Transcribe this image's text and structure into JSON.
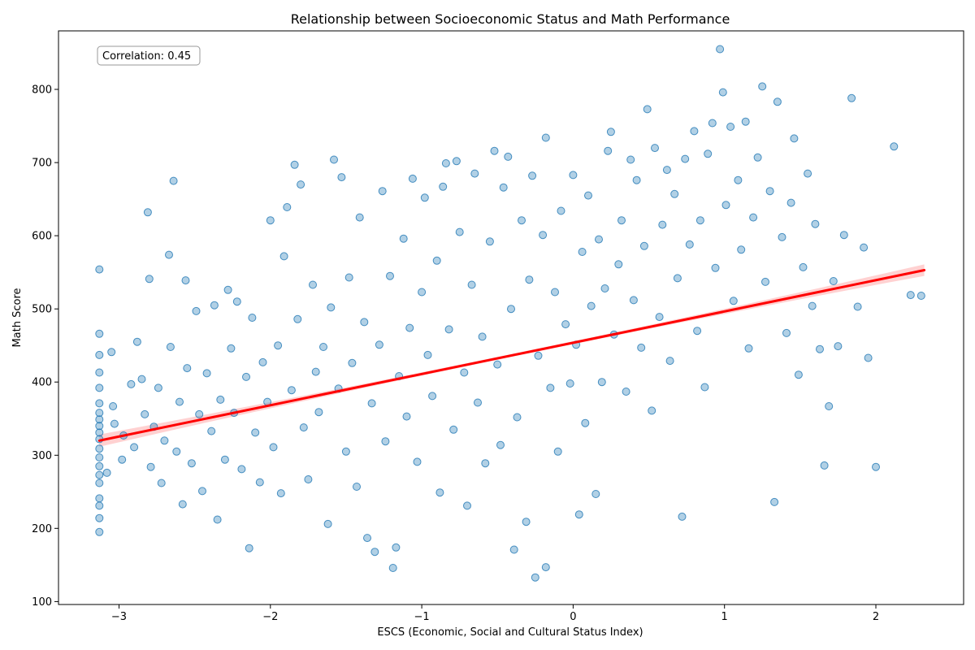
{
  "chart_data": {
    "type": "scatter",
    "title": "Relationship between Socioeconomic Status and Math Performance",
    "xlabel": "ESCS (Economic, Social and Cultural Status Index)",
    "ylabel": "Math Score",
    "xlim": [
      -3.4,
      2.58
    ],
    "ylim": [
      96,
      880
    ],
    "xticks": [
      -3,
      -2,
      -1,
      0,
      1,
      2
    ],
    "xtick_labels": [
      "−3",
      "−2",
      "−1",
      "0",
      "1",
      "2"
    ],
    "yticks": [
      100,
      200,
      300,
      400,
      500,
      600,
      700,
      800
    ],
    "ytick_labels": [
      "100",
      "200",
      "300",
      "400",
      "500",
      "600",
      "700",
      "800"
    ],
    "grid": false,
    "annotation": "Correlation: 0.45",
    "colors": {
      "points": "#1f77b4",
      "regression": "#ff0000",
      "confidence_band": "#ff9999"
    },
    "series": [
      {
        "type": "scatter",
        "alpha": 0.35,
        "points": [
          [
            -3.13,
            554
          ],
          [
            -3.13,
            466
          ],
          [
            -3.13,
            437
          ],
          [
            -3.13,
            413
          ],
          [
            -3.13,
            392
          ],
          [
            -3.13,
            371
          ],
          [
            -3.13,
            358
          ],
          [
            -3.13,
            349
          ],
          [
            -3.13,
            340
          ],
          [
            -3.13,
            331
          ],
          [
            -3.13,
            322
          ],
          [
            -3.13,
            309
          ],
          [
            -3.13,
            297
          ],
          [
            -3.13,
            285
          ],
          [
            -3.13,
            273
          ],
          [
            -3.13,
            262
          ],
          [
            -3.13,
            241
          ],
          [
            -3.13,
            231
          ],
          [
            -3.13,
            214
          ],
          [
            -3.13,
            195
          ],
          [
            -3.08,
            276
          ],
          [
            -3.05,
            441
          ],
          [
            -3.04,
            367
          ],
          [
            -3.03,
            343
          ],
          [
            -2.98,
            294
          ],
          [
            -2.97,
            327
          ],
          [
            -2.92,
            397
          ],
          [
            -2.9,
            311
          ],
          [
            -2.88,
            455
          ],
          [
            -2.85,
            404
          ],
          [
            -2.83,
            356
          ],
          [
            -2.81,
            632
          ],
          [
            -2.8,
            541
          ],
          [
            -2.79,
            284
          ],
          [
            -2.77,
            339
          ],
          [
            -2.74,
            392
          ],
          [
            -2.72,
            262
          ],
          [
            -2.7,
            320
          ],
          [
            -2.67,
            574
          ],
          [
            -2.66,
            448
          ],
          [
            -2.64,
            675
          ],
          [
            -2.62,
            305
          ],
          [
            -2.6,
            373
          ],
          [
            -2.58,
            233
          ],
          [
            -2.56,
            539
          ],
          [
            -2.55,
            419
          ],
          [
            -2.52,
            289
          ],
          [
            -2.49,
            497
          ],
          [
            -2.47,
            356
          ],
          [
            -2.45,
            251
          ],
          [
            -2.42,
            412
          ],
          [
            -2.39,
            333
          ],
          [
            -2.37,
            505
          ],
          [
            -2.35,
            212
          ],
          [
            -2.33,
            376
          ],
          [
            -2.3,
            294
          ],
          [
            -2.28,
            526
          ],
          [
            -2.26,
            446
          ],
          [
            -2.24,
            358
          ],
          [
            -2.22,
            510
          ],
          [
            -2.19,
            281
          ],
          [
            -2.16,
            407
          ],
          [
            -2.14,
            173
          ],
          [
            -2.12,
            488
          ],
          [
            -2.1,
            331
          ],
          [
            -2.07,
            263
          ],
          [
            -2.05,
            427
          ],
          [
            -2.02,
            373
          ],
          [
            -2.0,
            621
          ],
          [
            -1.98,
            311
          ],
          [
            -1.95,
            450
          ],
          [
            -1.93,
            248
          ],
          [
            -1.91,
            572
          ],
          [
            -1.89,
            639
          ],
          [
            -1.86,
            389
          ],
          [
            -1.84,
            697
          ],
          [
            -1.82,
            486
          ],
          [
            -1.8,
            670
          ],
          [
            -1.78,
            338
          ],
          [
            -1.75,
            267
          ],
          [
            -1.72,
            533
          ],
          [
            -1.7,
            414
          ],
          [
            -1.68,
            359
          ],
          [
            -1.65,
            448
          ],
          [
            -1.62,
            206
          ],
          [
            -1.6,
            502
          ],
          [
            -1.58,
            704
          ],
          [
            -1.55,
            391
          ],
          [
            -1.53,
            680
          ],
          [
            -1.5,
            305
          ],
          [
            -1.48,
            543
          ],
          [
            -1.46,
            426
          ],
          [
            -1.43,
            257
          ],
          [
            -1.41,
            625
          ],
          [
            -1.38,
            482
          ],
          [
            -1.36,
            187
          ],
          [
            -1.33,
            371
          ],
          [
            -1.31,
            168
          ],
          [
            -1.28,
            451
          ],
          [
            -1.26,
            661
          ],
          [
            -1.24,
            319
          ],
          [
            -1.21,
            545
          ],
          [
            -1.19,
            146
          ],
          [
            -1.17,
            174
          ],
          [
            -1.15,
            408
          ],
          [
            -1.12,
            596
          ],
          [
            -1.1,
            353
          ],
          [
            -1.08,
            474
          ],
          [
            -1.06,
            678
          ],
          [
            -1.03,
            291
          ],
          [
            -1.0,
            523
          ],
          [
            -0.98,
            652
          ],
          [
            -0.96,
            437
          ],
          [
            -0.93,
            381
          ],
          [
            -0.9,
            566
          ],
          [
            -0.88,
            249
          ],
          [
            -0.86,
            667
          ],
          [
            -0.84,
            699
          ],
          [
            -0.82,
            472
          ],
          [
            -0.79,
            335
          ],
          [
            -0.77,
            702
          ],
          [
            -0.75,
            605
          ],
          [
            -0.72,
            413
          ],
          [
            -0.7,
            231
          ],
          [
            -0.67,
            533
          ],
          [
            -0.65,
            685
          ],
          [
            -0.63,
            372
          ],
          [
            -0.6,
            462
          ],
          [
            -0.58,
            289
          ],
          [
            -0.55,
            592
          ],
          [
            -0.52,
            716
          ],
          [
            -0.5,
            424
          ],
          [
            -0.48,
            314
          ],
          [
            -0.46,
            666
          ],
          [
            -0.43,
            708
          ],
          [
            -0.41,
            500
          ],
          [
            -0.39,
            171
          ],
          [
            -0.37,
            352
          ],
          [
            -0.34,
            621
          ],
          [
            -0.31,
            209
          ],
          [
            -0.29,
            540
          ],
          [
            -0.27,
            682
          ],
          [
            -0.25,
            133
          ],
          [
            -0.23,
            436
          ],
          [
            -0.2,
            601
          ],
          [
            -0.18,
            734
          ],
          [
            -0.18,
            147
          ],
          [
            -0.15,
            392
          ],
          [
            -0.12,
            523
          ],
          [
            -0.1,
            305
          ],
          [
            -0.08,
            634
          ],
          [
            -0.05,
            479
          ],
          [
            -0.02,
            398
          ],
          [
            0.0,
            683
          ],
          [
            0.02,
            451
          ],
          [
            0.04,
            219
          ],
          [
            0.06,
            578
          ],
          [
            0.08,
            344
          ],
          [
            0.1,
            655
          ],
          [
            0.12,
            504
          ],
          [
            0.15,
            247
          ],
          [
            0.17,
            595
          ],
          [
            0.19,
            400
          ],
          [
            0.21,
            528
          ],
          [
            0.23,
            716
          ],
          [
            0.25,
            742
          ],
          [
            0.27,
            465
          ],
          [
            0.3,
            561
          ],
          [
            0.32,
            621
          ],
          [
            0.35,
            387
          ],
          [
            0.38,
            704
          ],
          [
            0.4,
            512
          ],
          [
            0.42,
            676
          ],
          [
            0.45,
            447
          ],
          [
            0.47,
            586
          ],
          [
            0.49,
            773
          ],
          [
            0.52,
            361
          ],
          [
            0.54,
            720
          ],
          [
            0.57,
            489
          ],
          [
            0.59,
            615
          ],
          [
            0.62,
            690
          ],
          [
            0.64,
            429
          ],
          [
            0.67,
            657
          ],
          [
            0.69,
            542
          ],
          [
            0.72,
            216
          ],
          [
            0.74,
            705
          ],
          [
            0.77,
            588
          ],
          [
            0.8,
            743
          ],
          [
            0.82,
            470
          ],
          [
            0.84,
            621
          ],
          [
            0.87,
            393
          ],
          [
            0.89,
            712
          ],
          [
            0.92,
            754
          ],
          [
            0.94,
            556
          ],
          [
            0.97,
            855
          ],
          [
            0.99,
            796
          ],
          [
            1.01,
            642
          ],
          [
            1.04,
            749
          ],
          [
            1.06,
            511
          ],
          [
            1.09,
            676
          ],
          [
            1.11,
            581
          ],
          [
            1.14,
            756
          ],
          [
            1.16,
            446
          ],
          [
            1.19,
            625
          ],
          [
            1.22,
            707
          ],
          [
            1.25,
            804
          ],
          [
            1.27,
            537
          ],
          [
            1.3,
            661
          ],
          [
            1.33,
            236
          ],
          [
            1.35,
            783
          ],
          [
            1.38,
            598
          ],
          [
            1.41,
            467
          ],
          [
            1.44,
            645
          ],
          [
            1.46,
            733
          ],
          [
            1.49,
            410
          ],
          [
            1.52,
            557
          ],
          [
            1.55,
            685
          ],
          [
            1.58,
            504
          ],
          [
            1.6,
            616
          ],
          [
            1.63,
            445
          ],
          [
            1.66,
            286
          ],
          [
            1.69,
            367
          ],
          [
            1.72,
            538
          ],
          [
            1.75,
            449
          ],
          [
            1.79,
            601
          ],
          [
            1.84,
            788
          ],
          [
            1.88,
            503
          ],
          [
            1.92,
            584
          ],
          [
            1.95,
            433
          ],
          [
            2.0,
            284
          ],
          [
            2.12,
            722
          ],
          [
            2.23,
            519
          ],
          [
            2.3,
            518
          ]
        ]
      },
      {
        "type": "line",
        "points": [
          [
            -3.13,
            320
          ],
          [
            2.32,
            553
          ]
        ]
      }
    ]
  }
}
